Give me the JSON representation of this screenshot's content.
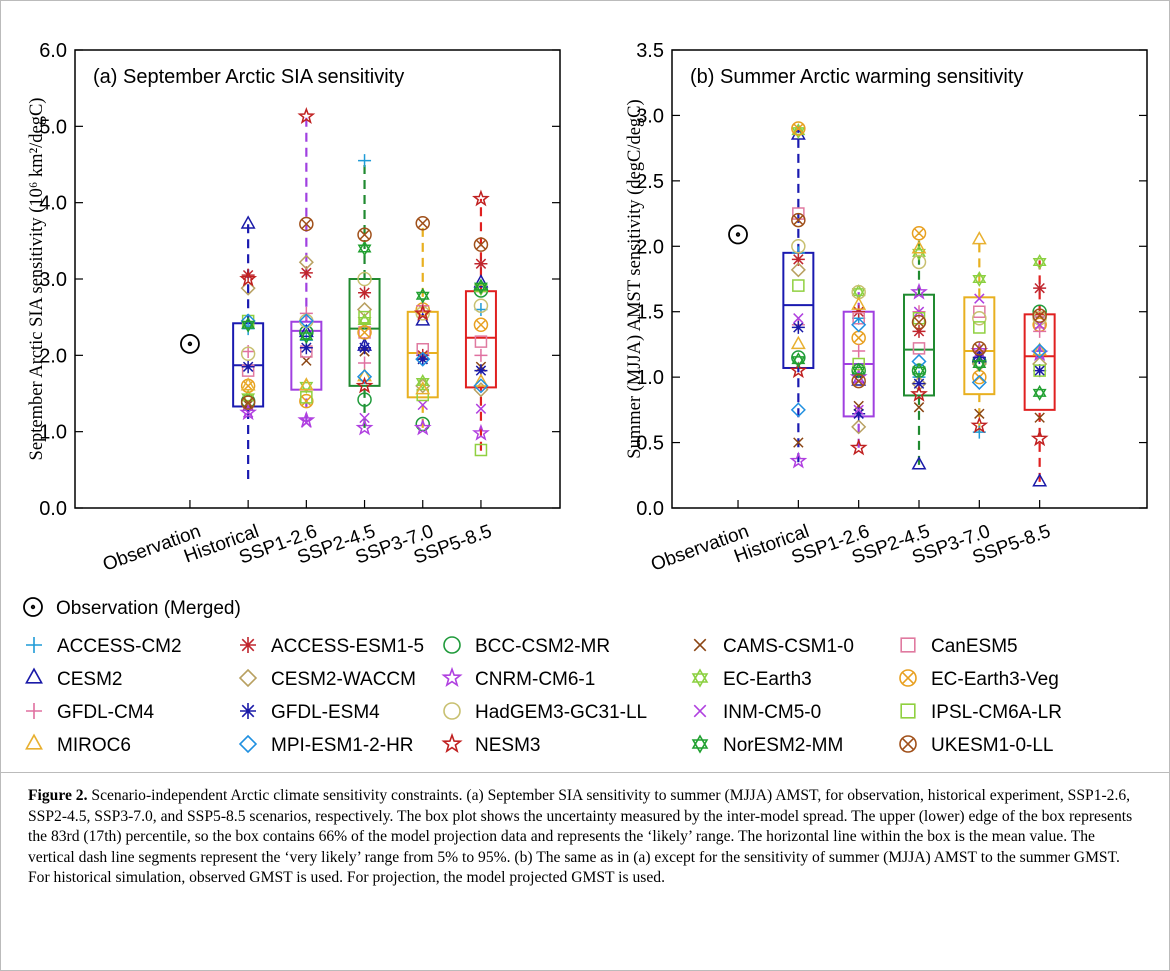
{
  "chart_data": [
    {
      "type": "box",
      "title": "(a) September Arctic SIA sensitivity",
      "ylabel": "September Arctic SIA sensitivity (10⁶ km²/degC)",
      "categories": [
        "Observation",
        "Historical",
        "SSP1-2.6",
        "SSP2-4.5",
        "SSP3-7.0",
        "SSP5-8.5"
      ],
      "ylim": [
        0,
        6
      ],
      "yticks": [
        {
          "value": 0,
          "label": "0.0"
        },
        {
          "value": 1,
          "label": "1.0"
        },
        {
          "value": 2,
          "label": "2.0"
        },
        {
          "value": 3,
          "label": "3.0"
        },
        {
          "value": 4,
          "label": "4.0"
        },
        {
          "value": 5,
          "label": "5.0"
        },
        {
          "value": 6,
          "label": "6.0"
        }
      ],
      "observation": 2.15,
      "observation_label": "Observation (Merged)",
      "box_colors": [
        null,
        "#1a1ab0",
        "#a040e0",
        "#208a30",
        "#e8b020",
        "#e02020"
      ],
      "boxes": [
        null,
        {
          "whislo": 0.38,
          "q1": 1.33,
          "mean": 1.87,
          "q3": 2.42,
          "whishi": 3.72
        },
        {
          "whislo": 1.12,
          "q1": 1.55,
          "mean": 2.32,
          "q3": 2.44,
          "whishi": 5.13
        },
        {
          "whislo": 1.05,
          "q1": 1.6,
          "mean": 2.35,
          "q3": 3.0,
          "whishi": 4.55
        },
        {
          "whislo": 1.05,
          "q1": 1.45,
          "mean": 2.03,
          "q3": 2.57,
          "whishi": 3.73
        },
        {
          "whislo": 0.75,
          "q1": 1.58,
          "mean": 2.23,
          "q3": 2.84,
          "whishi": 4.05
        }
      ],
      "series": [
        {
          "name": "ACCESS-CM2",
          "color": "#1f9bd7",
          "marker": "plus",
          "values": [
            null,
            2.35,
            2.2,
            4.55,
            1.95,
            2.6
          ]
        },
        {
          "name": "ACCESS-ESM1-5",
          "color": "#c0262e",
          "marker": "asterisk",
          "values": [
            null,
            3.05,
            3.08,
            2.82,
            2.0,
            3.2
          ]
        },
        {
          "name": "BCC-CSM2-MR",
          "color": "#1f9a3a",
          "marker": "circle",
          "values": [
            null,
            1.4,
            2.3,
            1.42,
            1.1,
            2.85
          ]
        },
        {
          "name": "CAMS-CSM1-0",
          "color": "#8b4513",
          "marker": "x",
          "values": [
            null,
            1.35,
            1.93,
            2.05,
            1.95,
            1.85
          ]
        },
        {
          "name": "CanESM5",
          "color": "#e07aa0",
          "marker": "square",
          "values": [
            null,
            1.8,
            2.05,
            2.3,
            2.08,
            2.18
          ]
        },
        {
          "name": "CESM2",
          "color": "#1a1aa8",
          "marker": "triangle",
          "values": [
            null,
            3.72,
            2.3,
            2.12,
            2.45,
            2.95
          ]
        },
        {
          "name": "CESM2-WACCM",
          "color": "#b8a060",
          "marker": "diamond",
          "values": [
            null,
            2.88,
            3.22,
            2.6,
            1.6,
            1.55
          ]
        },
        {
          "name": "CNRM-CM6-1",
          "color": "#b040e0",
          "marker": "star",
          "values": [
            null,
            1.25,
            1.15,
            1.05,
            1.05,
            0.98
          ]
        },
        {
          "name": "EC-Earth3",
          "color": "#8bd040",
          "marker": "star6",
          "values": [
            null,
            1.45,
            1.6,
            2.45,
            1.65,
            2.88
          ]
        },
        {
          "name": "EC-Earth3-Veg",
          "color": "#e8a020",
          "marker": "circlex",
          "values": [
            null,
            1.6,
            1.4,
            2.3,
            2.6,
            2.4
          ]
        },
        {
          "name": "GFDL-CM4",
          "color": "#e070a0",
          "marker": "plus",
          "values": [
            null,
            2.05,
            2.55,
            1.9,
            2.65,
            2.0
          ]
        },
        {
          "name": "GFDL-ESM4",
          "color": "#1a1aa8",
          "marker": "asterisk",
          "values": [
            null,
            1.85,
            2.1,
            2.1,
            1.95,
            1.8
          ]
        },
        {
          "name": "HadGEM3-GC31-LL",
          "color": "#c8c070",
          "marker": "circle",
          "values": [
            null,
            2.02,
            2.45,
            3.0,
            2.55,
            2.65
          ]
        },
        {
          "name": "INM-CM5-0",
          "color": "#b040e0",
          "marker": "x",
          "values": [
            null,
            1.25,
            1.12,
            1.18,
            1.35,
            1.3
          ]
        },
        {
          "name": "IPSL-CM6A-LR",
          "color": "#90d040",
          "marker": "square",
          "values": [
            null,
            2.45,
            1.45,
            2.5,
            1.48,
            0.76
          ]
        },
        {
          "name": "MIROC6",
          "color": "#e8b030",
          "marker": "triangle",
          "values": [
            null,
            1.6,
            1.6,
            1.72,
            1.55,
            1.65
          ]
        },
        {
          "name": "MPI-ESM1-2-HR",
          "color": "#2090e0",
          "marker": "diamond",
          "values": [
            null,
            2.45,
            2.45,
            1.72,
            1.95,
            1.6
          ]
        },
        {
          "name": "NESM3",
          "color": "#c02020",
          "marker": "star",
          "values": [
            null,
            3.0,
            5.13,
            1.6,
            2.55,
            4.05
          ]
        },
        {
          "name": "NorESM2-MM",
          "color": "#20a030",
          "marker": "star6",
          "values": [
            null,
            2.4,
            2.25,
            3.4,
            2.78,
            2.9
          ]
        },
        {
          "name": "UKESM1-0-LL",
          "color": "#a0501a",
          "marker": "circlex",
          "values": [
            null,
            1.38,
            3.72,
            3.58,
            3.73,
            3.45
          ]
        }
      ]
    },
    {
      "type": "box",
      "title": "(b) Summer Arctic warming sensitivity",
      "ylabel": "Summer (MJJA) AMST sensitivity (degC/degC)",
      "categories": [
        "Observation",
        "Historical",
        "SSP1-2.6",
        "SSP2-4.5",
        "SSP3-7.0",
        "SSP5-8.5"
      ],
      "ylim": [
        0,
        3.5
      ],
      "yticks": [
        {
          "value": 0,
          "label": "0.0"
        },
        0.5,
        {
          "value": 1,
          "label": "1.0"
        },
        1.5,
        {
          "value": 2,
          "label": "2.0"
        },
        2.5,
        {
          "value": 3,
          "label": "3.0"
        },
        3.5
      ],
      "observation": 2.09,
      "box_colors": [
        null,
        "#1a1ab0",
        "#a040e0",
        "#208a30",
        "#e8b020",
        "#e02020"
      ],
      "boxes": [
        null,
        {
          "whislo": 0.35,
          "q1": 1.07,
          "mean": 1.55,
          "q3": 1.95,
          "whishi": 2.9
        },
        {
          "whislo": 0.46,
          "q1": 0.7,
          "mean": 1.1,
          "q3": 1.5,
          "whishi": 1.65
        },
        {
          "whislo": 0.33,
          "q1": 0.86,
          "mean": 1.21,
          "q3": 1.63,
          "whishi": 2.1
        },
        {
          "whislo": 0.58,
          "q1": 0.87,
          "mean": 1.2,
          "q3": 1.61,
          "whishi": 2.05
        },
        {
          "whislo": 0.2,
          "q1": 0.75,
          "mean": 1.16,
          "q3": 1.48,
          "whishi": 1.9
        }
      ],
      "series": [
        {
          "values": [
            null,
            1.95,
            1.45,
            1.0,
            0.58,
            1.2
          ]
        },
        {
          "values": [
            null,
            1.9,
            1.5,
            1.35,
            1.15,
            1.68
          ]
        },
        {
          "values": [
            null,
            1.15,
            1.05,
            1.05,
            1.12,
            1.5
          ]
        },
        {
          "values": [
            null,
            0.5,
            0.78,
            0.77,
            0.72,
            0.69
          ]
        },
        {
          "values": [
            null,
            2.25,
            1.45,
            1.22,
            1.5,
            1.42
          ]
        },
        {
          "values": [
            null,
            2.85,
            0.97,
            0.33,
            1.15,
            0.2
          ]
        },
        {
          "values": [
            null,
            1.82,
            0.62,
            0.95,
            1.1,
            1.1
          ]
        },
        {
          "values": [
            null,
            0.36,
            1.0,
            1.65,
            1.2,
            1.18
          ]
        },
        {
          "values": [
            null,
            2.88,
            1.65,
            1.95,
            1.75,
            1.88
          ]
        },
        {
          "values": [
            null,
            2.9,
            1.3,
            2.1,
            1.0,
            1.4
          ]
        },
        {
          "values": [
            null,
            1.4,
            1.2,
            1.5,
            1.2,
            1.35
          ]
        },
        {
          "values": [
            null,
            1.38,
            0.72,
            0.95,
            1.15,
            1.05
          ]
        },
        {
          "values": [
            null,
            2.0,
            1.65,
            1.88,
            1.45,
            1.45
          ]
        },
        {
          "values": [
            null,
            1.45,
            0.75,
            1.5,
            1.6,
            1.4
          ]
        },
        {
          "values": [
            null,
            1.7,
            1.1,
            1.45,
            1.38,
            1.05
          ]
        },
        {
          "values": [
            null,
            1.25,
            1.55,
            1.98,
            2.05,
            1.2
          ]
        },
        {
          "values": [
            null,
            0.75,
            1.4,
            1.12,
            0.96,
            1.2
          ]
        },
        {
          "values": [
            null,
            1.05,
            0.46,
            0.87,
            0.63,
            0.53
          ]
        },
        {
          "values": [
            null,
            1.13,
            1.05,
            1.05,
            1.1,
            0.88
          ]
        },
        {
          "values": [
            null,
            2.2,
            0.97,
            1.42,
            1.22,
            1.47
          ]
        }
      ]
    }
  ],
  "caption": {
    "label": "Figure 2.",
    "text": "Scenario-independent Arctic climate sensitivity constraints. (a) September SIA sensitivity to summer (MJJA) AMST, for observation, historical experiment, SSP1-2.6, SSP2-4.5, SSP3-7.0, and SSP5-8.5 scenarios, respectively. The box plot shows the uncertainty measured by the inter-model spread. The upper (lower) edge of the box represents the 83rd (17th) percentile, so the box contains 66% of the model projection data and represents the ‘likely’ range. The horizontal line within the box is the mean value. The vertical dash line segments represent the ‘very likely’ range from 5% to 95%. (b) The same as in (a) except for the sensitivity of summer (MJJA) AMST to the summer GMST. For historical simulation, observed GMST is used. For projection, the model projected GMST is used."
  }
}
